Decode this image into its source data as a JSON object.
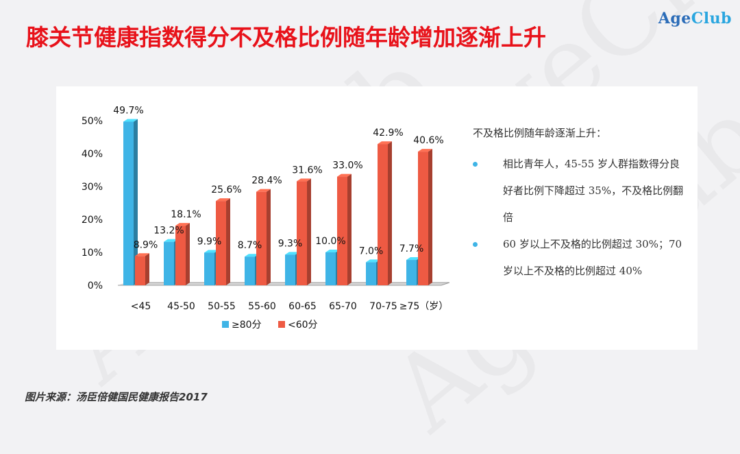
{
  "header": {
    "title": "膝关节健康指数得分不及格比例随年龄增加逐渐上升",
    "logo_part1": "Age",
    "logo_part2": "Club",
    "logo_color1": "#2b6cb8",
    "logo_color2": "#2aa6df",
    "watermark": "AgeClub"
  },
  "chart_data": {
    "type": "bar",
    "categories": [
      "<45",
      "45-50",
      "50-55",
      "55-60",
      "60-65",
      "65-70",
      "70-75",
      "≥75（岁）"
    ],
    "series": [
      {
        "name": "≥80分",
        "color": "#3fb4e6",
        "values": [
          49.7,
          13.2,
          9.9,
          8.7,
          9.3,
          10.0,
          7.0,
          7.7
        ],
        "labels": [
          "49.7%",
          "13.2%",
          "9.9%",
          "8.7%",
          "9.3%",
          "10.0%",
          "7.0%",
          "7.7%"
        ]
      },
      {
        "name": "<60分",
        "color": "#ee5a43",
        "values": [
          8.9,
          18.1,
          25.6,
          28.4,
          31.6,
          33.0,
          42.9,
          40.6
        ],
        "labels": [
          "8.9%",
          "18.1%",
          "25.6%",
          "28.4%",
          "31.6%",
          "33.0%",
          "42.9%",
          "40.6%"
        ]
      }
    ],
    "ylim": [
      0,
      50
    ],
    "yticks": [
      "0%",
      "10%",
      "20%",
      "30%",
      "40%",
      "50%"
    ],
    "legend_position": "bottom",
    "grid": false
  },
  "notes": {
    "heading": "不及格比例随年龄逐渐上升：",
    "bullets": [
      "相比青年人，45-55 岁人群指数得分良好者比例下降超过 35%，不及格比例翻倍",
      "60 岁以上不及格的比例超过 30%；70 岁以上不及格的比例超过 40%"
    ]
  },
  "footer": {
    "source": "图片来源：汤臣倍健国民健康报告2017"
  }
}
